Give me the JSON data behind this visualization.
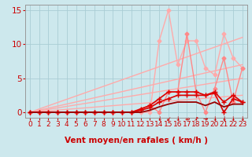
{
  "title": "",
  "xlabel": "Vent moyen/en rafales ( km/h )",
  "ylabel": "",
  "background_color": "#cde8ed",
  "grid_color": "#aacdd4",
  "xlim": [
    -0.5,
    23.5
  ],
  "ylim": [
    -0.8,
    15.8
  ],
  "xticks": [
    0,
    1,
    2,
    3,
    4,
    5,
    6,
    7,
    8,
    9,
    10,
    11,
    12,
    13,
    14,
    15,
    16,
    17,
    18,
    19,
    20,
    21,
    22,
    23
  ],
  "yticks": [
    0,
    5,
    10,
    15
  ],
  "lines": [
    {
      "x": [
        0,
        23
      ],
      "y": [
        0,
        11.0
      ],
      "color": "#ffaaaa",
      "lw": 1.0,
      "marker": null,
      "ms": 0,
      "zorder": 2
    },
    {
      "x": [
        0,
        23
      ],
      "y": [
        0,
        7.0
      ],
      "color": "#ffaaaa",
      "lw": 1.0,
      "marker": null,
      "ms": 0,
      "zorder": 2
    },
    {
      "x": [
        0,
        23
      ],
      "y": [
        0,
        5.0
      ],
      "color": "#ffaaaa",
      "lw": 1.0,
      "marker": null,
      "ms": 0,
      "zorder": 2
    },
    {
      "x": [
        0,
        23
      ],
      "y": [
        0,
        2.5
      ],
      "color": "#ffaaaa",
      "lw": 1.0,
      "marker": null,
      "ms": 0,
      "zorder": 2
    },
    {
      "x": [
        0,
        1,
        2,
        3,
        4,
        5,
        6,
        7,
        8,
        9,
        10,
        11,
        12,
        13,
        14,
        15,
        16,
        17,
        18,
        19,
        20,
        21,
        22,
        23
      ],
      "y": [
        0,
        0,
        0,
        0,
        0,
        0,
        0,
        0,
        0,
        0,
        0,
        0,
        0,
        0,
        10.5,
        15.0,
        7.0,
        10.5,
        10.5,
        6.5,
        5.5,
        11.5,
        8.0,
        6.5
      ],
      "color": "#ffaaaa",
      "lw": 1.0,
      "marker": "D",
      "ms": 2.5,
      "zorder": 3
    },
    {
      "x": [
        0,
        1,
        2,
        3,
        4,
        5,
        6,
        7,
        8,
        9,
        10,
        11,
        12,
        13,
        14,
        15,
        16,
        17,
        18,
        19,
        20,
        21,
        22,
        23
      ],
      "y": [
        0,
        0,
        0,
        0,
        0,
        0,
        0,
        0,
        0,
        0,
        0,
        0,
        0.5,
        1.0,
        0,
        3.0,
        3.0,
        11.5,
        3.0,
        0,
        3.5,
        8.0,
        1.5,
        6.5
      ],
      "color": "#ff8888",
      "lw": 1.0,
      "marker": "D",
      "ms": 2.5,
      "zorder": 3
    },
    {
      "x": [
        0,
        1,
        2,
        3,
        4,
        5,
        6,
        7,
        8,
        9,
        10,
        11,
        12,
        13,
        14,
        15,
        16,
        17,
        18,
        19,
        20,
        21,
        22,
        23
      ],
      "y": [
        0,
        0,
        0,
        0,
        0,
        0,
        0,
        0,
        0,
        0,
        0,
        0,
        0.5,
        1.0,
        2.0,
        3.0,
        3.0,
        3.0,
        3.0,
        2.5,
        3.0,
        1.5,
        2.5,
        1.5
      ],
      "color": "#dd0000",
      "lw": 1.2,
      "marker": "+",
      "ms": 4,
      "zorder": 4
    },
    {
      "x": [
        0,
        1,
        2,
        3,
        4,
        5,
        6,
        7,
        8,
        9,
        10,
        11,
        12,
        13,
        14,
        15,
        16,
        17,
        18,
        19,
        20,
        21,
        22,
        23
      ],
      "y": [
        0,
        0,
        0,
        0,
        0,
        0,
        0,
        0,
        0,
        0,
        0,
        0,
        0.3,
        0.7,
        1.5,
        2.0,
        2.5,
        2.5,
        2.5,
        2.5,
        2.8,
        0.0,
        2.0,
        1.5
      ],
      "color": "#dd0000",
      "lw": 1.2,
      "marker": "+",
      "ms": 4,
      "zorder": 4
    },
    {
      "x": [
        0,
        1,
        2,
        3,
        4,
        5,
        6,
        7,
        8,
        9,
        10,
        11,
        12,
        13,
        14,
        15,
        16,
        17,
        18,
        19,
        20,
        21,
        22,
        23
      ],
      "y": [
        0,
        0,
        0,
        0,
        0,
        0,
        0,
        0,
        0,
        0,
        0,
        0,
        0,
        0.3,
        0.8,
        1.2,
        1.5,
        1.5,
        1.5,
        1.0,
        1.5,
        0.8,
        1.2,
        1.2
      ],
      "color": "#990000",
      "lw": 1.3,
      "marker": null,
      "ms": 0,
      "zorder": 4
    }
  ],
  "arrow_annotations": [
    {
      "x": 14,
      "symbol": "↓"
    },
    {
      "x": 15,
      "symbol": "↙"
    },
    {
      "x": 16,
      "symbol": "↓"
    },
    {
      "x": 17,
      "symbol": "⇒"
    },
    {
      "x": 18,
      "symbol": "↗"
    },
    {
      "x": 19,
      "symbol": "→"
    },
    {
      "x": 20,
      "symbol": "↓"
    },
    {
      "x": 21,
      "symbol": "↓"
    },
    {
      "x": 22,
      "symbol": "↓"
    },
    {
      "x": 23,
      "symbol": "↓"
    }
  ],
  "tick_color": "#cc0000",
  "label_color": "#cc0000",
  "axis_color": "#999999",
  "xlabel_fontsize": 7.5,
  "tick_fontsize": 6.5,
  "ytick_fontsize": 7.5
}
